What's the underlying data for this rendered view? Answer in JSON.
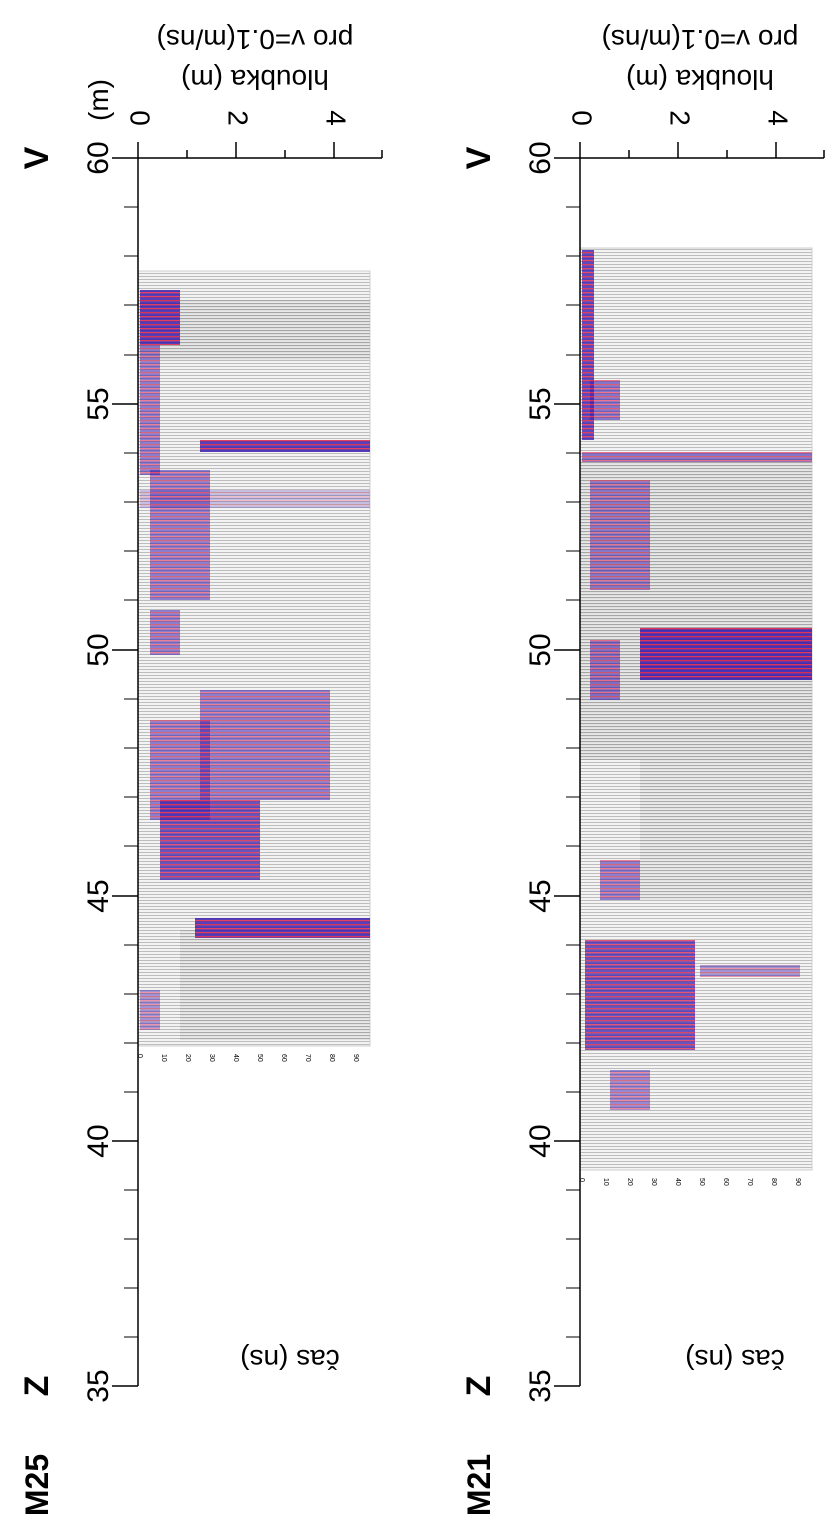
{
  "figure": {
    "axis_unit_label": "(m)",
    "end_left_label": "Z",
    "end_right_label": "V",
    "depth_axis_label_line1": "hloubka (m)",
    "depth_axis_label_line2": "pro v=0.1(m/ns)",
    "time_axis_label": "čas (ns)",
    "colors": {
      "reflection_purple": "#3a1fae",
      "reflection_red": "#e0204a",
      "axis": "#000000"
    }
  },
  "profiles": [
    {
      "name": "M25",
      "distance_ticks": [
        "35",
        "40",
        "45",
        "50",
        "55",
        "60"
      ],
      "depth_ticks": [
        "0",
        "2",
        "4"
      ],
      "time_ticks": [
        "0",
        "10",
        "20",
        "30",
        "40",
        "50",
        "60",
        "70",
        "80",
        "90"
      ],
      "data_range_m": [
        41.9,
        57.7
      ]
    },
    {
      "name": "M21",
      "distance_ticks": [
        "35",
        "40",
        "45",
        "50",
        "55",
        "60"
      ],
      "depth_ticks": [
        "0",
        "2",
        "4"
      ],
      "time_ticks": [
        "0",
        "10",
        "20",
        "30",
        "40",
        "50",
        "60",
        "70",
        "80",
        "90"
      ],
      "data_range_m": [
        39.4,
        58.2
      ]
    }
  ]
}
